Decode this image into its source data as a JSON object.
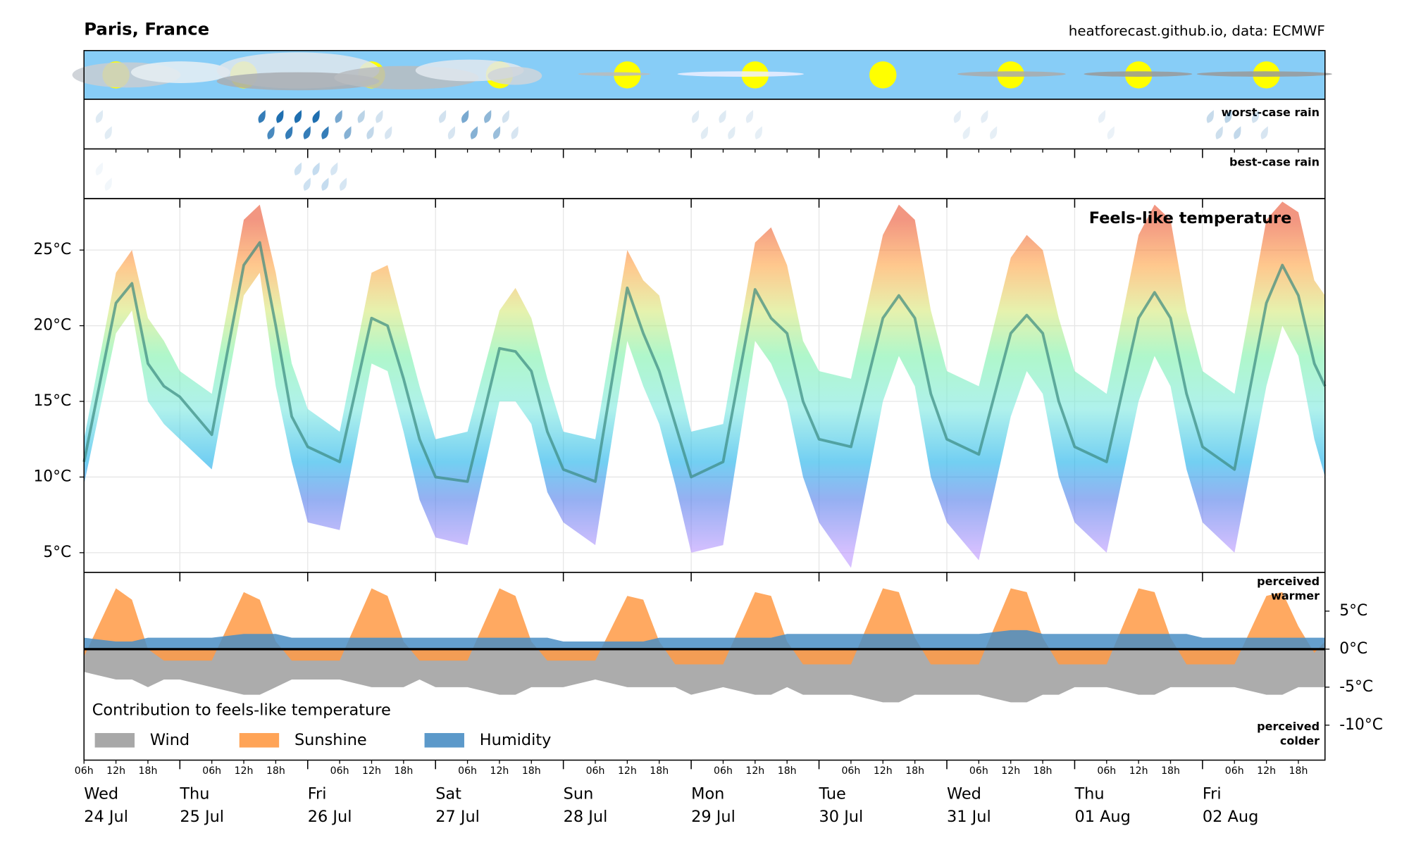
{
  "title": "Paris, France",
  "source": "heatforecast.github.io, data: ECMWF",
  "rain_panels": [
    "worst-case rain",
    "best-case rain"
  ],
  "time_axis": {
    "xlim": [
      "24 Jul 06h",
      "02 Aug 23h"
    ],
    "days": [
      {
        "weekday": "Wed",
        "date": "24 Jul"
      },
      {
        "weekday": "Thu",
        "date": "25 Jul"
      },
      {
        "weekday": "Fri",
        "date": "26 Jul"
      },
      {
        "weekday": "Sat",
        "date": "27 Jul"
      },
      {
        "weekday": "Sun",
        "date": "28 Jul"
      },
      {
        "weekday": "Mon",
        "date": "29 Jul"
      },
      {
        "weekday": "Tue",
        "date": "30 Jul"
      },
      {
        "weekday": "Wed",
        "date": "31 Jul"
      },
      {
        "weekday": "Thu",
        "date": "01 Aug"
      },
      {
        "weekday": "Fri",
        "date": "02 Aug"
      }
    ],
    "hour_ticks": [
      {
        "value": 6,
        "label": "06h"
      },
      {
        "value": 12,
        "label": "12h"
      },
      {
        "value": 18,
        "label": "18h"
      }
    ],
    "x": [
      "24 Jul 06h",
      "24 Jul 12h",
      "24 Jul 15h",
      "24 Jul 18h",
      "24 Jul 21h",
      "25 Jul 00h",
      "25 Jul 06h",
      "25 Jul 12h",
      "25 Jul 15h",
      "25 Jul 18h",
      "25 Jul 21h",
      "26 Jul 00h",
      "26 Jul 06h",
      "26 Jul 12h",
      "26 Jul 15h",
      "26 Jul 18h",
      "26 Jul 21h",
      "27 Jul 00h",
      "27 Jul 06h",
      "27 Jul 12h",
      "27 Jul 15h",
      "27 Jul 18h",
      "27 Jul 21h",
      "28 Jul 00h",
      "28 Jul 06h",
      "28 Jul 12h",
      "28 Jul 15h",
      "28 Jul 18h",
      "28 Jul 21h",
      "29 Jul 00h",
      "29 Jul 06h",
      "29 Jul 12h",
      "29 Jul 15h",
      "29 Jul 18h",
      "29 Jul 21h",
      "30 Jul 00h",
      "30 Jul 06h",
      "30 Jul 12h",
      "30 Jul 15h",
      "30 Jul 18h",
      "30 Jul 21h",
      "31 Jul 00h",
      "31 Jul 06h",
      "31 Jul 12h",
      "31 Jul 15h",
      "31 Jul 18h",
      "31 Jul 21h",
      "01 Aug 00h",
      "01 Aug 06h",
      "01 Aug 12h",
      "01 Aug 15h",
      "01 Aug 18h",
      "01 Aug 21h",
      "02 Aug 00h",
      "02 Aug 06h",
      "02 Aug 12h",
      "02 Aug 15h",
      "02 Aug 18h",
      "02 Aug 21h",
      "02 Aug 23h"
    ]
  },
  "chart_data": [
    {
      "type": "line",
      "title": "Feels-like temperature",
      "ylim": [
        3.7,
        28.4
      ],
      "yticks": [
        {
          "value": 5,
          "label": "5°C"
        },
        {
          "value": 10,
          "label": "10°C"
        },
        {
          "value": 15,
          "label": "15°C"
        },
        {
          "value": 20,
          "label": "20°C"
        },
        {
          "value": 25,
          "label": "25°C"
        }
      ],
      "grid": true,
      "color_stops": [
        {
          "value": 5,
          "color": "#b48cff"
        },
        {
          "value": 8.5,
          "color": "#3f6fe8"
        },
        {
          "value": 11,
          "color": "#00a8e8"
        },
        {
          "value": 14.5,
          "color": "#6ee6dc"
        },
        {
          "value": 18,
          "color": "#6ef0a0"
        },
        {
          "value": 21,
          "color": "#d2e66a"
        },
        {
          "value": 24,
          "color": "#ff9a30"
        },
        {
          "value": 27,
          "color": "#e8401a"
        }
      ],
      "series": [
        {
          "color": "#3a8a80",
          "values": [
            11,
            21.5,
            22.8,
            17.5,
            16,
            15.3,
            12.8,
            24,
            25.5,
            20,
            14,
            12,
            11,
            20.5,
            20,
            16.5,
            12.5,
            10,
            9.7,
            18.5,
            18.3,
            17,
            13,
            10.5,
            9.7,
            22.5,
            19.5,
            17,
            13.5,
            10,
            11,
            22.4,
            20.5,
            19.5,
            15,
            12.5,
            12,
            20.5,
            22,
            20.5,
            15.5,
            12.5,
            11.5,
            19.5,
            20.7,
            19.5,
            15,
            12,
            11,
            20.5,
            22.2,
            20.5,
            15.5,
            12,
            10.5,
            21.5,
            24,
            22,
            17.5,
            16
          ]
        }
      ],
      "bands": [
        {
          "low": [
            9.5,
            19.5,
            21,
            15,
            13.5,
            12.5,
            10.5,
            22,
            23.5,
            16,
            11,
            7,
            6.5,
            17.5,
            17,
            13,
            8.5,
            6,
            5.5,
            15,
            15,
            13.5,
            9,
            7,
            5.5,
            19,
            16,
            13.5,
            9.5,
            5,
            5.5,
            19,
            17.5,
            15,
            10,
            7,
            4,
            15,
            18,
            16,
            10,
            7,
            4.5,
            14,
            17,
            15.5,
            10,
            7,
            5,
            15,
            18,
            16,
            10.5,
            7,
            5,
            16,
            20,
            18,
            12.5,
            10
          ],
          "high": [
            12.5,
            23.5,
            25,
            20.5,
            19,
            17,
            15.5,
            27,
            28,
            23.5,
            17.5,
            14.5,
            13,
            23.5,
            24,
            20,
            16,
            12.5,
            13,
            21,
            22.5,
            20.5,
            16.5,
            13,
            12.5,
            25,
            23,
            22,
            17.5,
            13,
            13.5,
            25.5,
            26.5,
            24,
            19,
            17,
            16.5,
            26,
            28,
            27,
            21,
            17,
            16,
            24.5,
            26,
            25,
            20.5,
            17,
            15.5,
            26,
            28,
            27,
            21,
            17,
            15.5,
            27,
            28.2,
            27.5,
            23,
            22
          ]
        }
      ]
    },
    {
      "type": "area",
      "title": "Contribution to feels-like temperature",
      "annotations": [
        "perceived warmer",
        "perceived colder"
      ],
      "ylim": [
        -14.6,
        10.1
      ],
      "yticks": [
        {
          "value": 5,
          "label": "5°C"
        },
        {
          "value": 0,
          "label": "0°C"
        },
        {
          "value": -5,
          "label": "-5°C"
        },
        {
          "value": -10,
          "label": "-10°C"
        }
      ],
      "series": [
        {
          "name": "Wind",
          "color": "#9e9e9e",
          "values": [
            -3,
            -4,
            -4,
            -5,
            -4,
            -4,
            -5,
            -6,
            -6,
            -5,
            -4,
            -4,
            -4,
            -5,
            -5,
            -5,
            -4,
            -5,
            -5,
            -6,
            -6,
            -5,
            -5,
            -5,
            -4,
            -5,
            -5,
            -5,
            -5,
            -6,
            -5,
            -6,
            -6,
            -5,
            -6,
            -6,
            -6,
            -7,
            -7,
            -6,
            -6,
            -6,
            -6,
            -7,
            -7,
            -6,
            -6,
            -5,
            -5,
            -6,
            -6,
            -5,
            -5,
            -5,
            -5,
            -6,
            -6,
            -5,
            -5,
            -5
          ]
        },
        {
          "name": "Sunshine",
          "color": "#ff9a45",
          "values": [
            -1,
            8,
            6.5,
            0,
            -1.5,
            -1.5,
            -1.5,
            7.5,
            6.5,
            1,
            -1.5,
            -1.5,
            -1.5,
            8,
            7,
            1,
            -1.5,
            -1.5,
            -1.5,
            8,
            7,
            1,
            -1.5,
            -1.5,
            -1.5,
            7,
            6.5,
            1,
            -2,
            -2,
            -2,
            7.5,
            7,
            1,
            -2,
            -2,
            -2,
            8,
            7.5,
            1.5,
            -2,
            -2,
            -2,
            8,
            7.5,
            1.5,
            -2,
            -2,
            -2,
            8,
            7.5,
            1.5,
            -2,
            -2,
            -2,
            7,
            7.5,
            3,
            -0.5,
            1
          ]
        },
        {
          "name": "Humidity",
          "color": "#4a8ec4",
          "values": [
            1.5,
            1,
            1,
            1.5,
            1.5,
            1.5,
            1.5,
            2,
            2,
            2,
            1.5,
            1.5,
            1.5,
            1.5,
            1.5,
            1.5,
            1.5,
            1.5,
            1.5,
            1.5,
            1.5,
            1.5,
            1.5,
            1,
            1,
            1,
            1,
            1.5,
            1.5,
            1.5,
            1.5,
            1.5,
            1.5,
            2,
            2,
            2,
            2,
            2,
            2,
            2,
            2,
            2,
            2,
            2.5,
            2.5,
            2,
            2,
            2,
            2,
            2,
            2,
            2,
            2,
            1.5,
            1.5,
            1.5,
            1.5,
            1.5,
            1.5,
            1.5
          ]
        }
      ]
    }
  ]
}
